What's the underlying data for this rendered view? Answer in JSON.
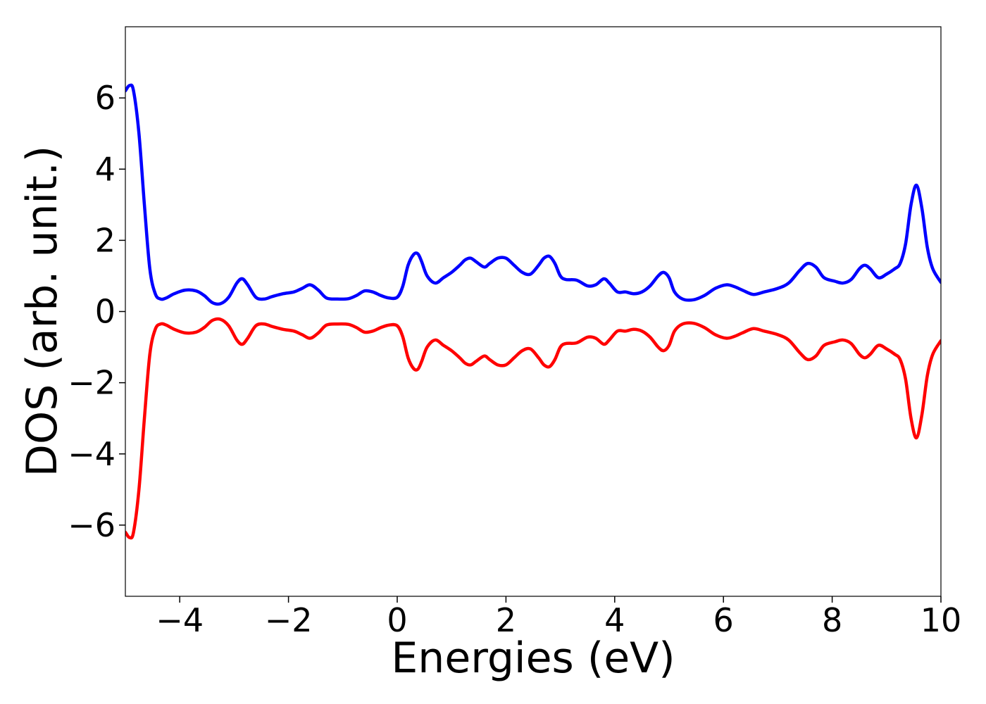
{
  "chart_data": {
    "type": "line",
    "title": "",
    "xlabel": "Energies (eV)",
    "ylabel": "DOS (arb. unit.)",
    "xlim": [
      -5,
      10
    ],
    "ylim": [
      -8,
      8
    ],
    "x_ticks": [
      -4,
      -2,
      0,
      2,
      4,
      6,
      8,
      10
    ],
    "x_tick_labels": [
      "−4",
      "−2",
      "0",
      "2",
      "4",
      "6",
      "8",
      "10"
    ],
    "y_ticks": [
      -6,
      -4,
      -2,
      0,
      2,
      4,
      6
    ],
    "y_tick_labels": [
      "−6",
      "−4",
      "−2",
      "0",
      "2",
      "4",
      "6"
    ],
    "grid": false,
    "legend": "none",
    "series": [
      {
        "color": "#0000ff",
        "x": [
          -5.0,
          -4.92,
          -4.85,
          -4.75,
          -4.65,
          -4.55,
          -4.45,
          -4.35,
          -4.25,
          -4.1,
          -3.9,
          -3.7,
          -3.55,
          -3.4,
          -3.25,
          -3.1,
          -2.95,
          -2.85,
          -2.75,
          -2.6,
          -2.45,
          -2.3,
          -2.1,
          -1.9,
          -1.75,
          -1.6,
          -1.45,
          -1.3,
          -1.1,
          -0.9,
          -0.75,
          -0.6,
          -0.45,
          -0.3,
          -0.15,
          0.0,
          0.1,
          0.2,
          0.3,
          0.38,
          0.45,
          0.55,
          0.7,
          0.85,
          1.0,
          1.15,
          1.25,
          1.35,
          1.45,
          1.6,
          1.7,
          1.85,
          2.0,
          2.15,
          2.3,
          2.45,
          2.6,
          2.7,
          2.8,
          2.9,
          3.0,
          3.1,
          3.3,
          3.5,
          3.65,
          3.8,
          3.9,
          4.05,
          4.2,
          4.35,
          4.5,
          4.65,
          4.8,
          4.9,
          5.0,
          5.1,
          5.25,
          5.45,
          5.65,
          5.85,
          6.05,
          6.2,
          6.35,
          6.55,
          6.75,
          7.0,
          7.2,
          7.4,
          7.55,
          7.7,
          7.85,
          8.05,
          8.2,
          8.35,
          8.5,
          8.6,
          8.7,
          8.85,
          9.0,
          9.15,
          9.25,
          9.35,
          9.45,
          9.55,
          9.65,
          9.75,
          9.85,
          10.0
        ],
        "y": [
          6.2,
          6.35,
          6.2,
          5.0,
          3.0,
          1.2,
          0.5,
          0.35,
          0.38,
          0.5,
          0.6,
          0.58,
          0.45,
          0.25,
          0.22,
          0.4,
          0.8,
          0.92,
          0.75,
          0.4,
          0.35,
          0.42,
          0.5,
          0.55,
          0.65,
          0.75,
          0.6,
          0.38,
          0.35,
          0.36,
          0.45,
          0.58,
          0.55,
          0.45,
          0.38,
          0.4,
          0.7,
          1.3,
          1.6,
          1.62,
          1.4,
          1.0,
          0.8,
          0.95,
          1.1,
          1.3,
          1.45,
          1.5,
          1.4,
          1.25,
          1.35,
          1.5,
          1.5,
          1.3,
          1.1,
          1.05,
          1.3,
          1.5,
          1.55,
          1.35,
          1.0,
          0.9,
          0.88,
          0.72,
          0.75,
          0.92,
          0.8,
          0.55,
          0.55,
          0.5,
          0.55,
          0.72,
          1.0,
          1.1,
          0.95,
          0.55,
          0.35,
          0.33,
          0.45,
          0.65,
          0.75,
          0.7,
          0.6,
          0.48,
          0.55,
          0.65,
          0.8,
          1.15,
          1.35,
          1.25,
          0.95,
          0.85,
          0.8,
          0.9,
          1.2,
          1.3,
          1.2,
          0.95,
          1.05,
          1.2,
          1.35,
          1.9,
          3.0,
          3.55,
          2.9,
          1.8,
          1.2,
          0.82
        ]
      },
      {
        "color": "#ff0000",
        "x": [
          -5.0,
          -4.92,
          -4.85,
          -4.75,
          -4.65,
          -4.55,
          -4.45,
          -4.35,
          -4.25,
          -4.1,
          -3.9,
          -3.7,
          -3.55,
          -3.4,
          -3.25,
          -3.1,
          -2.95,
          -2.85,
          -2.75,
          -2.6,
          -2.45,
          -2.3,
          -2.1,
          -1.9,
          -1.75,
          -1.6,
          -1.45,
          -1.3,
          -1.1,
          -0.9,
          -0.75,
          -0.6,
          -0.45,
          -0.3,
          -0.15,
          0.0,
          0.1,
          0.2,
          0.3,
          0.38,
          0.45,
          0.55,
          0.7,
          0.85,
          1.0,
          1.15,
          1.25,
          1.35,
          1.45,
          1.6,
          1.7,
          1.85,
          2.0,
          2.15,
          2.3,
          2.45,
          2.6,
          2.7,
          2.8,
          2.9,
          3.0,
          3.1,
          3.3,
          3.5,
          3.65,
          3.8,
          3.9,
          4.05,
          4.2,
          4.35,
          4.5,
          4.65,
          4.8,
          4.9,
          5.0,
          5.1,
          5.25,
          5.45,
          5.65,
          5.85,
          6.05,
          6.2,
          6.35,
          6.55,
          6.75,
          7.0,
          7.2,
          7.4,
          7.55,
          7.7,
          7.85,
          8.05,
          8.2,
          8.35,
          8.5,
          8.6,
          8.7,
          8.85,
          9.0,
          9.15,
          9.25,
          9.35,
          9.45,
          9.55,
          9.65,
          9.75,
          9.85,
          10.0
        ],
        "y": [
          -6.2,
          -6.35,
          -6.2,
          -5.0,
          -3.0,
          -1.2,
          -0.5,
          -0.35,
          -0.38,
          -0.5,
          -0.6,
          -0.58,
          -0.45,
          -0.25,
          -0.22,
          -0.4,
          -0.8,
          -0.92,
          -0.75,
          -0.4,
          -0.35,
          -0.42,
          -0.5,
          -0.55,
          -0.65,
          -0.75,
          -0.6,
          -0.38,
          -0.35,
          -0.36,
          -0.45,
          -0.58,
          -0.55,
          -0.45,
          -0.38,
          -0.4,
          -0.7,
          -1.3,
          -1.6,
          -1.62,
          -1.4,
          -1.0,
          -0.8,
          -0.95,
          -1.1,
          -1.3,
          -1.45,
          -1.5,
          -1.4,
          -1.25,
          -1.35,
          -1.5,
          -1.5,
          -1.3,
          -1.1,
          -1.05,
          -1.3,
          -1.5,
          -1.55,
          -1.35,
          -1.0,
          -0.9,
          -0.88,
          -0.72,
          -0.75,
          -0.92,
          -0.8,
          -0.55,
          -0.55,
          -0.5,
          -0.55,
          -0.72,
          -1.0,
          -1.1,
          -0.95,
          -0.55,
          -0.35,
          -0.33,
          -0.45,
          -0.65,
          -0.75,
          -0.7,
          -0.6,
          -0.48,
          -0.55,
          -0.65,
          -0.8,
          -1.15,
          -1.35,
          -1.25,
          -0.95,
          -0.85,
          -0.8,
          -0.9,
          -1.2,
          -1.3,
          -1.2,
          -0.95,
          -1.05,
          -1.2,
          -1.35,
          -1.9,
          -3.0,
          -3.55,
          -2.9,
          -1.8,
          -1.2,
          -0.82
        ]
      }
    ]
  }
}
